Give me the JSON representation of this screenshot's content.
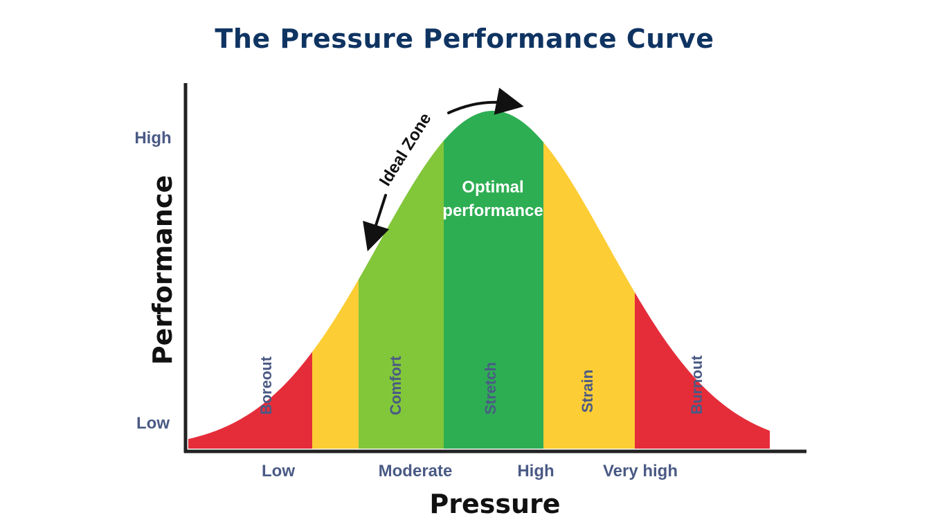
{
  "title": "The Pressure Performance Curve",
  "colors": {
    "title": "#0f3462",
    "label": "#4a5a85",
    "red": "#e52d3a",
    "yellow": "#fccd34",
    "light_green": "#82c63a",
    "dark_green": "#2eae53",
    "axis": "#222222"
  },
  "axes": {
    "x_title": "Pressure",
    "y_title": "Performance",
    "x_ticks": [
      "Low",
      "Moderate",
      "High",
      "Very high"
    ],
    "y_ticks": {
      "high": "High",
      "low": "Low"
    }
  },
  "zones": [
    {
      "label": "Boreout",
      "color": "red"
    },
    {
      "label": "Comfort",
      "color": "light_green"
    },
    {
      "label": "Stretch",
      "color": "dark_green"
    },
    {
      "label": "Strain",
      "color": "yellow"
    },
    {
      "label": "Burnout",
      "color": "red"
    }
  ],
  "annotations": {
    "ideal_zone": "Ideal Zone",
    "optimal_line1": "Optimal",
    "optimal_line2": "performance"
  }
}
